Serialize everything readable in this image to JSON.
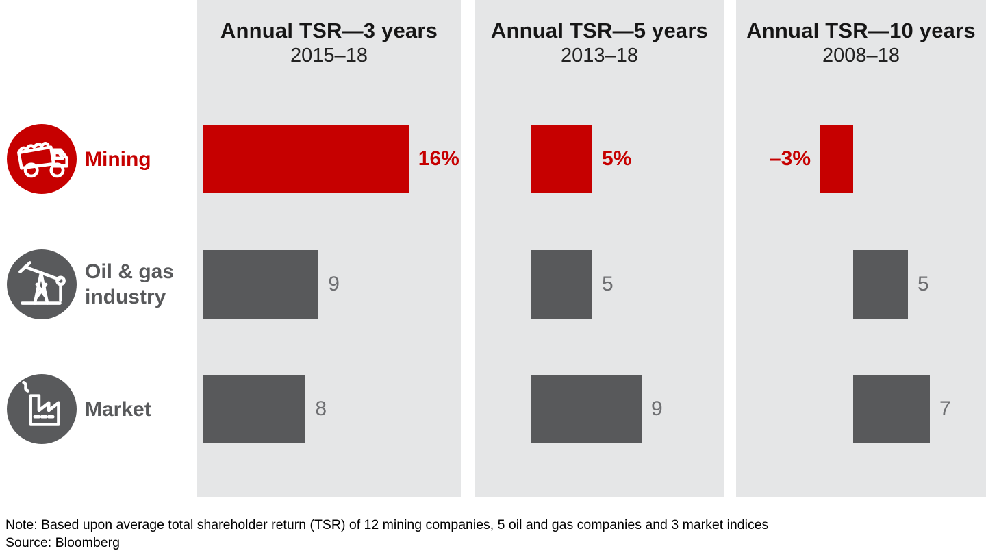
{
  "chart_data": {
    "type": "bar",
    "orientation": "horizontal",
    "categories": [
      "Mining",
      "Oil & gas industry",
      "Market"
    ],
    "unit": "% (annual TSR)",
    "legend_position": "left",
    "grid": false,
    "panels": [
      {
        "title": "Annual TSR—3 years",
        "subtitle": "2015–18",
        "bars": [
          {
            "category": "Mining",
            "value": 16,
            "label": "16%"
          },
          {
            "category": "Oil & gas industry",
            "value": 9,
            "label": "9"
          },
          {
            "category": "Market",
            "value": 8,
            "label": "8"
          }
        ]
      },
      {
        "title": "Annual TSR—5 years",
        "subtitle": "2013–18",
        "bars": [
          {
            "category": "Mining",
            "value": 5,
            "label": "5%"
          },
          {
            "category": "Oil & gas industry",
            "value": 5,
            "label": "5"
          },
          {
            "category": "Market",
            "value": 9,
            "label": "9"
          }
        ]
      },
      {
        "title": "Annual TSR—10 years",
        "subtitle": "2008–18",
        "bars": [
          {
            "category": "Mining",
            "value": -3,
            "label": "–3%"
          },
          {
            "category": "Oil & gas industry",
            "value": 5,
            "label": "5"
          },
          {
            "category": "Market",
            "value": 7,
            "label": "7"
          }
        ]
      }
    ],
    "colors": {
      "mining_accent": "#c60000",
      "neutral_bar": "#58595b",
      "value_label_gray": "#6d6e71",
      "panel_background": "#e5e6e7"
    }
  },
  "rows": [
    {
      "label": "Mining",
      "icon": "dump-truck-icon"
    },
    {
      "label": "Oil & gas industry",
      "icon": "oil-pumpjack-icon"
    },
    {
      "label": "Market",
      "icon": "factory-icon"
    }
  ],
  "footer": {
    "note": "Note: Based upon average total shareholder return (TSR) of 12 mining companies, 5 oil and gas companies and 3 market indices",
    "source": "Source: Bloomberg"
  }
}
